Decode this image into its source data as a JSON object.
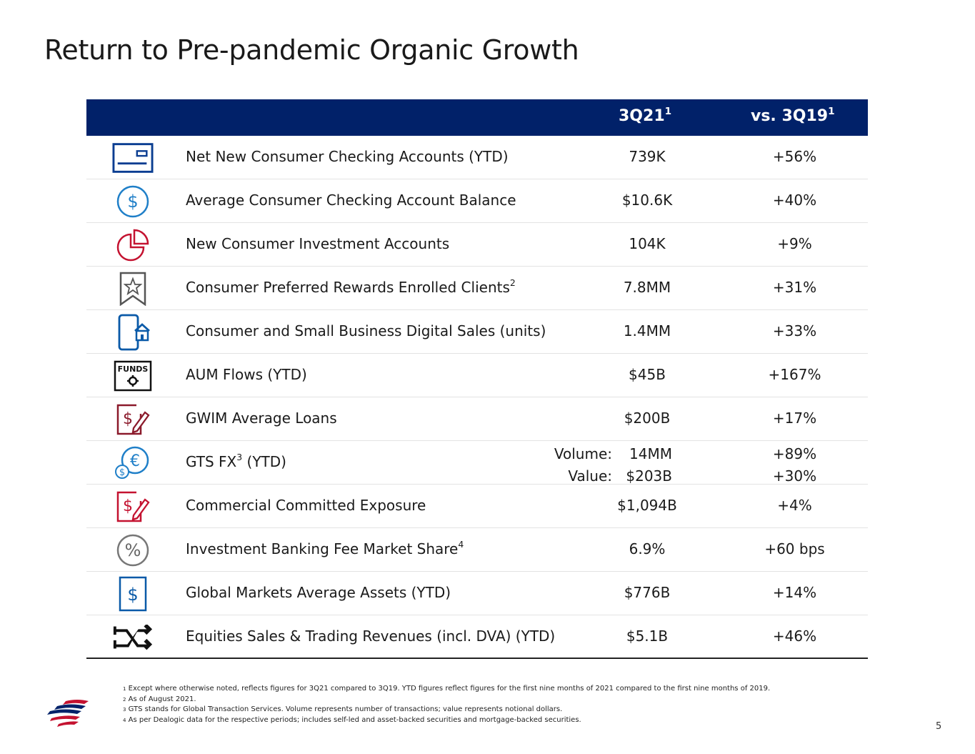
{
  "title": "Return to Pre-pandemic Organic Growth",
  "header": {
    "col1": "3Q21",
    "col1_sup": "1",
    "col2": "vs. 3Q19",
    "col2_sup": "1"
  },
  "rows": [
    {
      "icon": "checking-card-icon",
      "label": "Net New Consumer Checking Accounts (YTD)",
      "sup": "",
      "value": "739K",
      "change": "+56%"
    },
    {
      "icon": "dollar-circle-icon",
      "label": "Average Consumer Checking Account Balance",
      "sup": "",
      "value": "$10.6K",
      "change": "+40%"
    },
    {
      "icon": "pie-chart-icon",
      "label": "New Consumer Investment Accounts",
      "sup": "",
      "value": "104K",
      "change": "+9%"
    },
    {
      "icon": "bookmark-star-icon",
      "label": "Consumer Preferred Rewards Enrolled Clients",
      "sup": "2",
      "value": "7.8MM",
      "change": "+31%"
    },
    {
      "icon": "phone-home-icon",
      "label": "Consumer and Small Business Digital Sales (units)",
      "sup": "",
      "value": "1.4MM",
      "change": "+33%"
    },
    {
      "icon": "funds-gear-icon",
      "label": "AUM Flows (YTD)",
      "sup": "",
      "value": "$45B",
      "change": "+167%"
    },
    {
      "icon": "dollar-pen-icon",
      "label": "GWIM Average Loans",
      "sup": "",
      "value": "$200B",
      "change": "+17%"
    },
    {
      "icon": "euro-dollar-icon",
      "label": "GTS FX",
      "sup": "3",
      "label_suffix": " (YTD)",
      "fx": [
        {
          "label": "Volume:",
          "value": "14MM",
          "change": "+89%"
        },
        {
          "label": "Value:",
          "value": "$203B",
          "change": "+30%"
        }
      ]
    },
    {
      "icon": "dollar-pen-icon",
      "label": "Commercial Committed Exposure",
      "sup": "",
      "value": "$1,094B",
      "change": "+4%"
    },
    {
      "icon": "percent-circle-icon",
      "label": "Investment Banking Fee Market Share",
      "sup": "4",
      "value": "6.9%",
      "change": "+60 bps"
    },
    {
      "icon": "dollar-document-icon",
      "label": "Global Markets Average Assets (YTD)",
      "sup": "",
      "value": "$776B",
      "change": "+14%"
    },
    {
      "icon": "trading-arrows-icon",
      "label": "Equities Sales & Trading Revenues (incl. DVA) (YTD)",
      "sup": "",
      "value": "$5.1B",
      "change": "+46%"
    }
  ],
  "footnotes": [
    {
      "num": "1",
      "text": "Except where otherwise noted, reflects figures for 3Q21 compared to 3Q19. YTD figures reflect figures for the first nine months of 2021 compared to the first nine months of 2019."
    },
    {
      "num": "2",
      "text": "As of August 2021."
    },
    {
      "num": "3",
      "text": "GTS stands for Global Transaction Services. Volume represents number of transactions; value represents notional dollars."
    },
    {
      "num": "4",
      "text": "As per Dealogic data for the respective periods; includes self-led and asset-backed securities and mortgage-backed securities."
    }
  ],
  "page_number": "5",
  "icon_text": {
    "funds": "FUNDS"
  },
  "colors": {
    "navy": "#012169",
    "red": "#c41230",
    "blue": "#0a5aa8",
    "gray": "#666666"
  }
}
